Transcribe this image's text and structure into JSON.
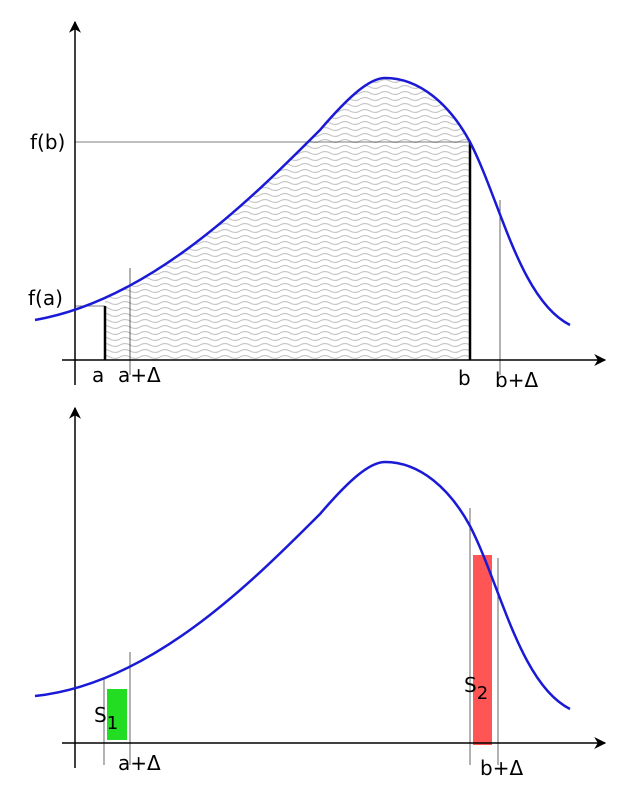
{
  "top": {
    "labels": {
      "fb": "f(b)",
      "fa": "f(a)",
      "a": "a",
      "a_delta": "a+Δ",
      "b": "b",
      "b_delta": "b+Δ"
    }
  },
  "bottom": {
    "labels": {
      "s1": "S",
      "s1_sub": "1",
      "a_delta": "a+Δ",
      "s2": "S",
      "s2_sub": "2",
      "b_delta": "b+Δ"
    }
  }
}
